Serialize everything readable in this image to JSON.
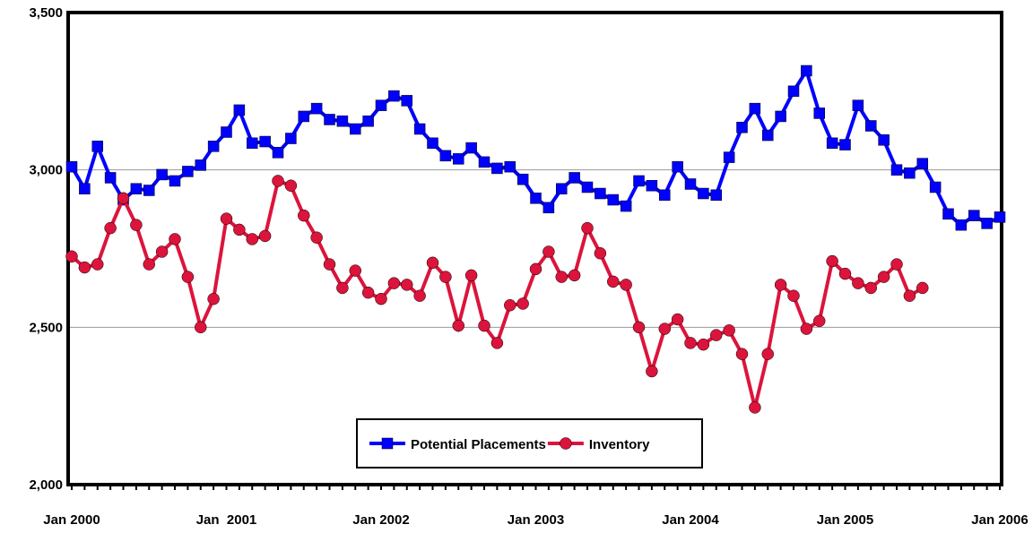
{
  "chart_data": {
    "type": "line",
    "categories": [
      "Jan 2000",
      null,
      null,
      null,
      null,
      null,
      null,
      null,
      null,
      null,
      null,
      null,
      "Jan  2001",
      null,
      null,
      null,
      null,
      null,
      null,
      null,
      null,
      null,
      null,
      null,
      "Jan 2002",
      null,
      null,
      null,
      null,
      null,
      null,
      null,
      null,
      null,
      null,
      null,
      "Jan 2003",
      null,
      null,
      null,
      null,
      null,
      null,
      null,
      null,
      null,
      null,
      null,
      "Jan 2004",
      null,
      null,
      null,
      null,
      null,
      null,
      null,
      null,
      null,
      null,
      null,
      "Jan 2005",
      null,
      null,
      null,
      null,
      null,
      null,
      null,
      null,
      null,
      null,
      null,
      "Jan 2006"
    ],
    "series": [
      {
        "name": "Potential Placements",
        "color": "#0000ff",
        "marker": "square",
        "values": [
          3010,
          2940,
          3075,
          2975,
          2905,
          2940,
          2935,
          2985,
          2965,
          2995,
          3015,
          3075,
          3120,
          3190,
          3085,
          3090,
          3055,
          3100,
          3170,
          3195,
          3160,
          3155,
          3130,
          3155,
          3205,
          3235,
          3220,
          3130,
          3085,
          3045,
          3035,
          3070,
          3025,
          3005,
          3010,
          2970,
          2910,
          2880,
          2940,
          2975,
          2945,
          2925,
          2905,
          2885,
          2965,
          2950,
          2920,
          3010,
          2955,
          2925,
          2920,
          3040,
          3135,
          3195,
          3110,
          3170,
          3250,
          3315,
          3180,
          3085,
          3080,
          3205,
          3140,
          3095,
          3000,
          2990,
          3020,
          2945,
          2860,
          2825,
          2855,
          2830,
          2850
        ]
      },
      {
        "name": "Inventory",
        "color": "#dc143c",
        "marker": "circle",
        "values": [
          2725,
          2690,
          2700,
          2815,
          2910,
          2825,
          2700,
          2740,
          2780,
          2660,
          2500,
          2590,
          2845,
          2810,
          2780,
          2790,
          2965,
          2950,
          2855,
          2785,
          2700,
          2625,
          2680,
          2610,
          2590,
          2640,
          2635,
          2600,
          2705,
          2660,
          2505,
          2665,
          2505,
          2450,
          2570,
          2575,
          2685,
          2740,
          2660,
          2665,
          2815,
          2735,
          2645,
          2635,
          2500,
          2360,
          2495,
          2525,
          2450,
          2445,
          2475,
          2490,
          2415,
          2245,
          2415,
          2635,
          2600,
          2495,
          2520,
          2710,
          2670,
          2640,
          2625,
          2660,
          2700,
          2600,
          2625,
          null,
          null,
          null,
          null,
          null,
          null
        ]
      }
    ],
    "ylim": [
      2000,
      3500
    ],
    "yticks": [
      {
        "value": 2000,
        "label": "2,000"
      },
      {
        "value": 2500,
        "label": "2,500"
      },
      {
        "value": 3000,
        "label": "3,000"
      },
      {
        "value": 3500,
        "label": "3,500"
      }
    ],
    "grid": true,
    "legend": "bottom"
  }
}
